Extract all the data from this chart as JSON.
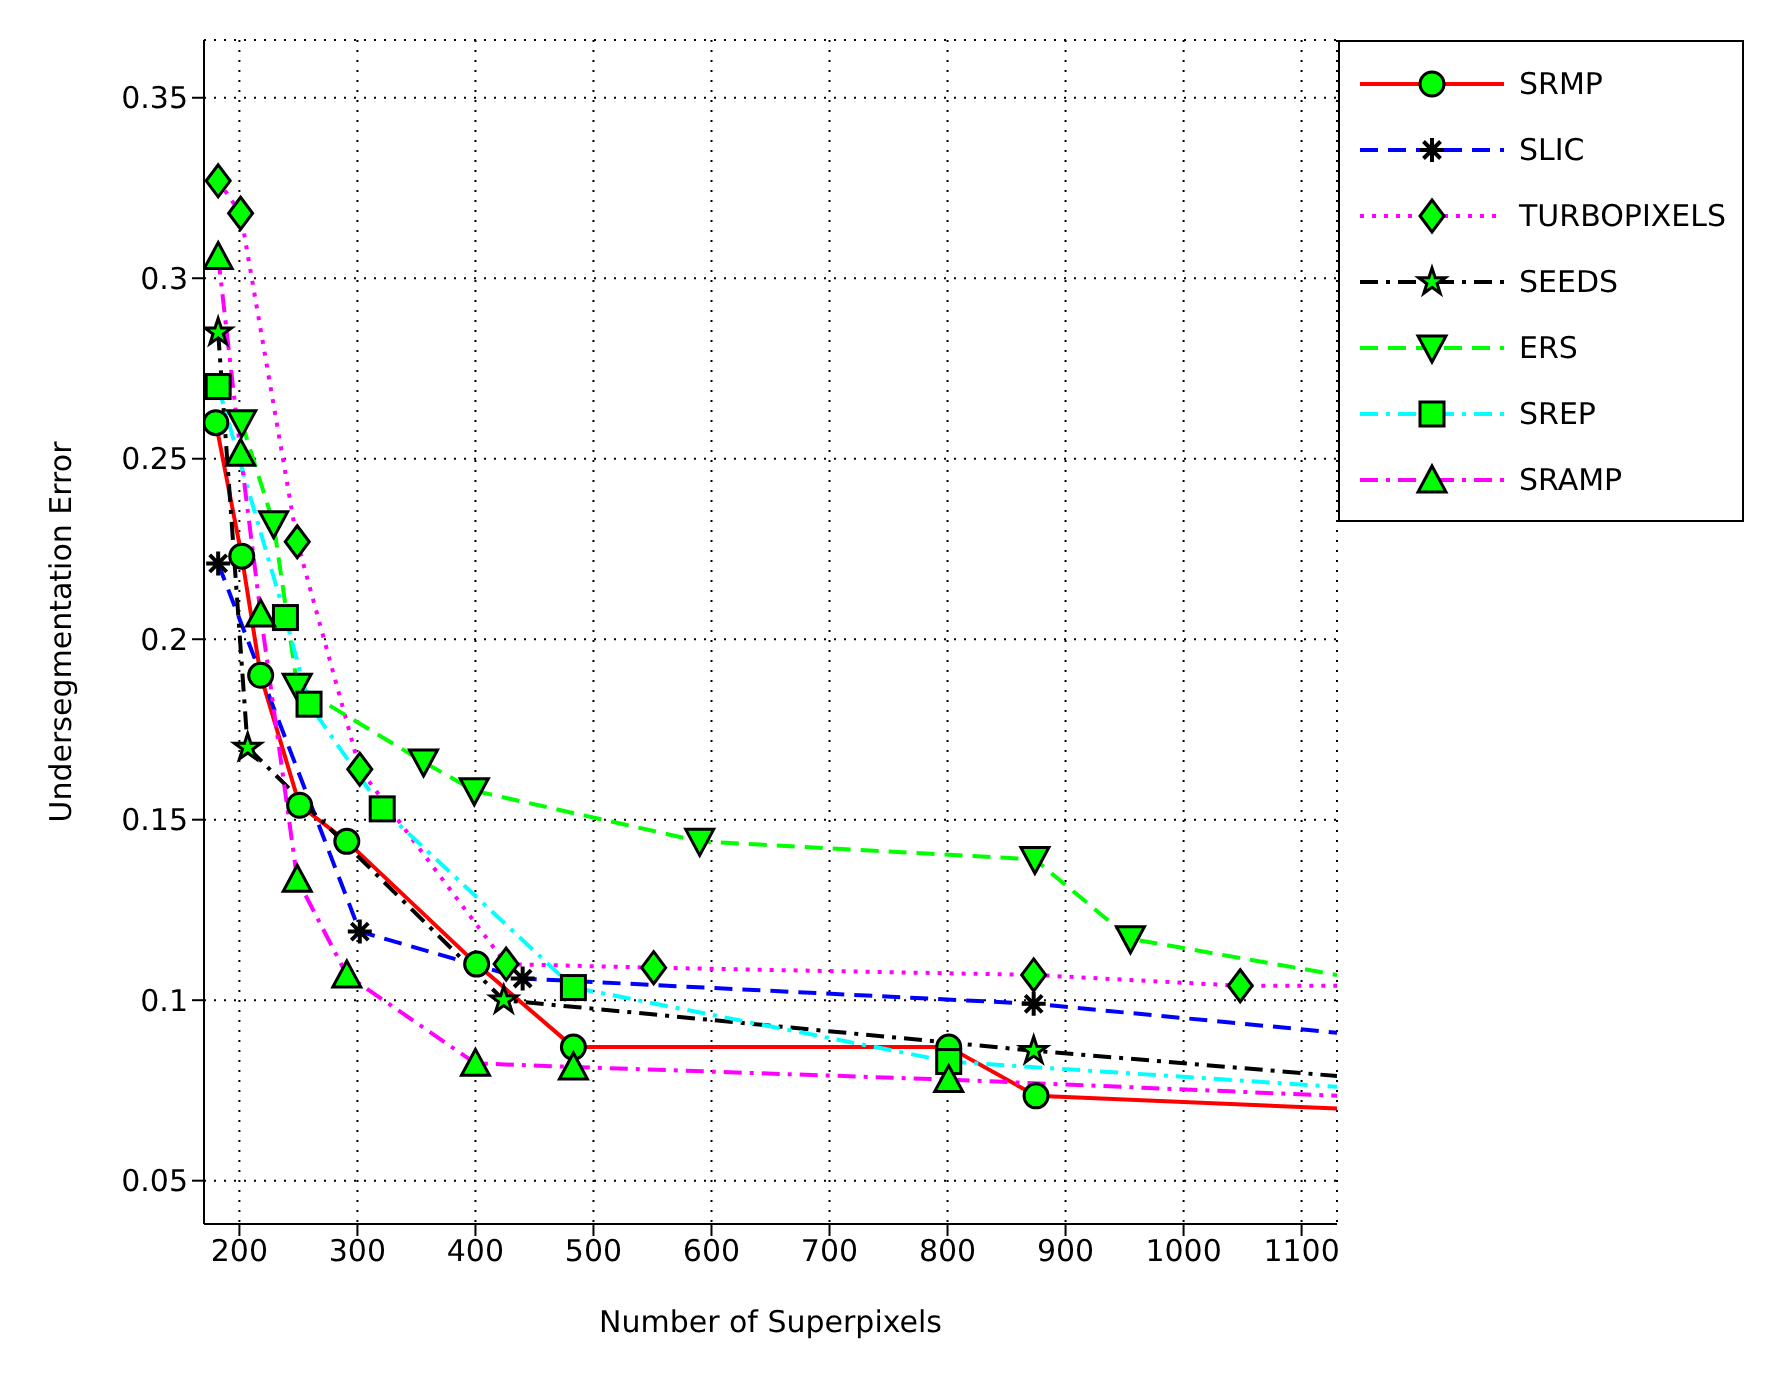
{
  "chart_data": {
    "type": "line",
    "xlabel": "Number of Superpixels",
    "ylabel": "Undersegmentation Error",
    "xlim": [
      170,
      1130
    ],
    "ylim": [
      0.038,
      0.366
    ],
    "xticks": [
      200,
      300,
      400,
      500,
      600,
      700,
      800,
      900,
      1000,
      1100
    ],
    "yticks": [
      0.05,
      0.1,
      0.15,
      0.2,
      0.25,
      0.3,
      0.35
    ],
    "grid": true,
    "legend": "top right",
    "series": [
      {
        "name": "SRMP",
        "color": "#ff0000",
        "line_style": "solid",
        "marker": "circle",
        "x": [
          180,
          202,
          218,
          251,
          291,
          401,
          483,
          801,
          875,
          1130
        ],
        "values": [
          0.26,
          0.223,
          0.19,
          0.154,
          0.144,
          0.11,
          0.087,
          0.087,
          0.0735,
          0.07
        ]
      },
      {
        "name": "SLIC",
        "color": "#0000ff",
        "line_style": "dashed",
        "marker": "cross",
        "x": [
          182,
          302,
          440,
          873,
          1130
        ],
        "values": [
          0.221,
          0.119,
          0.106,
          0.099,
          0.091
        ]
      },
      {
        "name": "TURBOPIXELS",
        "color": "#ff00ff",
        "line_style": "dotted",
        "marker": "diamond",
        "x": [
          182,
          201,
          249,
          302,
          426,
          551,
          873,
          1048,
          1130
        ],
        "values": [
          0.327,
          0.318,
          0.227,
          0.164,
          0.11,
          0.109,
          0.107,
          0.104,
          0.104
        ]
      },
      {
        "name": "SEEDS",
        "color": "#000000",
        "line_style": "dashdot",
        "marker": "star",
        "x": [
          182,
          207,
          424,
          873,
          1130
        ],
        "values": [
          0.285,
          0.17,
          0.1,
          0.086,
          0.079
        ]
      },
      {
        "name": "ERS",
        "color": "#00ff00",
        "line_style": "dashed",
        "marker": "triangle-down",
        "x": [
          202,
          229,
          249,
          356,
          399,
          590,
          874,
          955,
          1130
        ],
        "values": [
          0.26,
          0.232,
          0.187,
          0.166,
          0.158,
          0.144,
          0.139,
          0.117,
          0.107
        ]
      },
      {
        "name": "SREP",
        "color": "#00ffff",
        "line_style": "dashdot",
        "marker": "square",
        "x": [
          182,
          239,
          259,
          321,
          483,
          801,
          1130
        ],
        "values": [
          0.27,
          0.206,
          0.182,
          0.153,
          0.1035,
          0.083,
          0.076
        ]
      },
      {
        "name": "SRAMP",
        "color": "#ff00ff",
        "line_style": "dashdot",
        "marker": "triangle",
        "x": [
          182,
          201,
          218,
          249,
          291,
          400,
          483,
          801,
          1130
        ],
        "values": [
          0.306,
          0.2515,
          0.207,
          0.1335,
          0.107,
          0.0825,
          0.0815,
          0.078,
          0.0735
        ]
      }
    ]
  }
}
